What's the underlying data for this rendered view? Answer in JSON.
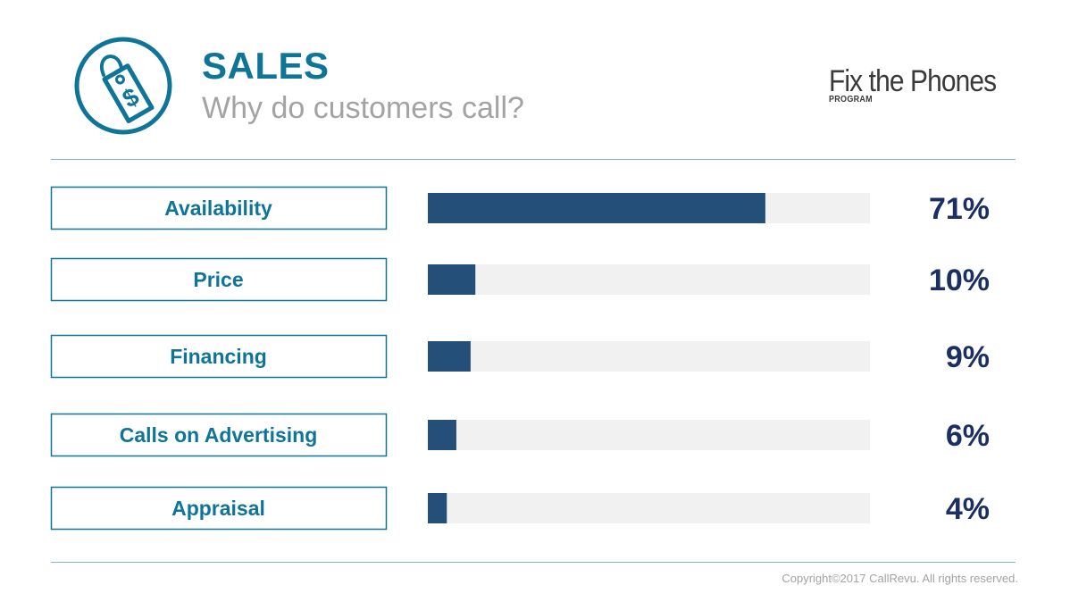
{
  "header": {
    "title": "SALES",
    "subtitle": "Why do customers call?",
    "icon": "price-tag-dollar-icon",
    "brand_name": "Fix the Phones",
    "brand_sub": "PROGRAM"
  },
  "colors": {
    "accent": "#0f7598",
    "bar_fill": "#234f79",
    "bar_track": "#f1f1f1",
    "value_text": "#1b2f63",
    "muted": "#a3a3a3"
  },
  "chart_data": {
    "type": "bar",
    "orientation": "horizontal",
    "title": "SALES",
    "subtitle": "Why do customers call?",
    "categories": [
      "Availability",
      "Price",
      "Financing",
      "Calls on Advertising",
      "Appraisal"
    ],
    "values": [
      71,
      10,
      9,
      6,
      4
    ],
    "value_labels": [
      "71%",
      "10%",
      "9%",
      "6%",
      "4%"
    ],
    "xlim": [
      0,
      93
    ],
    "unit": "%",
    "grid": false,
    "legend": "none"
  },
  "footer": {
    "copyright": "Copyright©2017 CallRevu. All rights reserved."
  }
}
